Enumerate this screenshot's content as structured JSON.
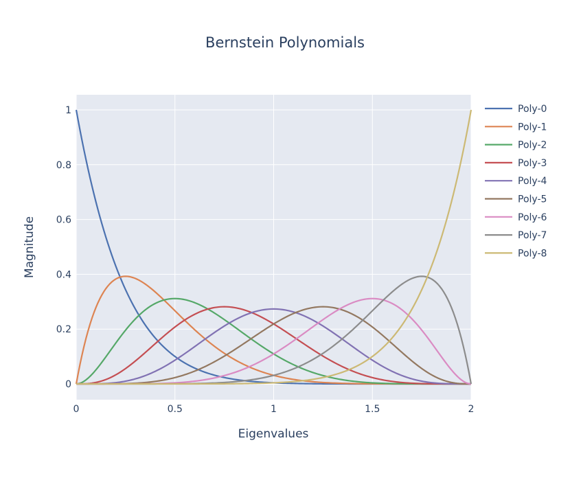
{
  "chart_data": {
    "type": "line",
    "title": "Bernstein Polynomials",
    "xlabel": "Eigenvalues",
    "ylabel": "Magnitude",
    "xlim": [
      0,
      2
    ],
    "ylim": [
      -0.0236,
      1
    ],
    "grid": true,
    "legend_position": "right",
    "x_ticks": [
      {
        "value": 0,
        "label": "0"
      },
      {
        "value": 0.5,
        "label": "0.5"
      },
      {
        "value": 1,
        "label": "1"
      },
      {
        "value": 1.5,
        "label": "1.5"
      },
      {
        "value": 2,
        "label": "2"
      }
    ],
    "y_ticks": [
      {
        "value": 0,
        "label": "0"
      },
      {
        "value": 0.2,
        "label": "0.2"
      },
      {
        "value": 0.4,
        "label": "0.4"
      },
      {
        "value": 0.6,
        "label": "0.6"
      },
      {
        "value": 0.8,
        "label": "0.8"
      },
      {
        "value": 1,
        "label": "1"
      }
    ],
    "x": [
      0,
      0.1,
      0.2,
      0.3,
      0.4,
      0.5,
      0.6,
      0.7,
      0.8,
      0.9,
      1.0,
      1.1,
      1.2,
      1.3,
      1.4,
      1.5,
      1.6,
      1.7,
      1.8,
      1.9,
      2.0
    ],
    "series": [
      {
        "name": "Poly-0",
        "color": "#4c72b0",
        "values": [
          1.0,
          0.663,
          0.43,
          0.272,
          0.168,
          0.1,
          0.058,
          0.032,
          0.017,
          0.008,
          0.004,
          0.002,
          0.001,
          0.0,
          0.0,
          0.0,
          0.0,
          0.0,
          0.0,
          0.0,
          0.0
        ]
      },
      {
        "name": "Poly-1",
        "color": "#dd8452",
        "values": [
          0.0,
          0.279,
          0.383,
          0.385,
          0.336,
          0.267,
          0.198,
          0.138,
          0.09,
          0.055,
          0.031,
          0.017,
          0.008,
          0.004,
          0.002,
          0.0,
          0.0,
          0.0,
          0.0,
          0.0,
          0.0
        ]
      },
      {
        "name": "Poly-2",
        "color": "#55a868",
        "values": [
          0.0,
          0.051,
          0.149,
          0.238,
          0.294,
          0.311,
          0.296,
          0.259,
          0.209,
          0.157,
          0.109,
          0.071,
          0.042,
          0.023,
          0.011,
          0.004,
          0.002,
          0.0,
          0.0,
          0.0,
          0.0
        ]
      },
      {
        "name": "Poly-3",
        "color": "#c44e52",
        "values": [
          0.0,
          0.005,
          0.033,
          0.084,
          0.147,
          0.208,
          0.254,
          0.279,
          0.279,
          0.257,
          0.219,
          0.173,
          0.124,
          0.081,
          0.047,
          0.023,
          0.009,
          0.003,
          0.0,
          0.0,
          0.0
        ]
      },
      {
        "name": "Poly-4",
        "color": "#8172b3",
        "values": [
          0.0,
          0.0,
          0.005,
          0.019,
          0.046,
          0.087,
          0.136,
          0.188,
          0.232,
          0.263,
          0.273,
          0.263,
          0.232,
          0.188,
          0.136,
          0.087,
          0.046,
          0.019,
          0.005,
          0.0,
          0.0
        ]
      },
      {
        "name": "Poly-5",
        "color": "#937860",
        "values": [
          0.0,
          0.0,
          0.0,
          0.003,
          0.009,
          0.023,
          0.047,
          0.081,
          0.124,
          0.173,
          0.219,
          0.257,
          0.279,
          0.279,
          0.254,
          0.208,
          0.147,
          0.084,
          0.033,
          0.005,
          0.0
        ]
      },
      {
        "name": "Poly-6",
        "color": "#da8bc3",
        "values": [
          0.0,
          0.0,
          0.0,
          0.0,
          0.002,
          0.004,
          0.011,
          0.023,
          0.042,
          0.071,
          0.109,
          0.157,
          0.209,
          0.259,
          0.296,
          0.311,
          0.294,
          0.238,
          0.149,
          0.051,
          0.0
        ]
      },
      {
        "name": "Poly-7",
        "color": "#8c8c8c",
        "values": [
          0.0,
          0.0,
          0.0,
          0.0,
          0.0,
          0.0,
          0.002,
          0.004,
          0.008,
          0.017,
          0.031,
          0.055,
          0.09,
          0.138,
          0.198,
          0.267,
          0.336,
          0.385,
          0.383,
          0.279,
          0.0
        ]
      },
      {
        "name": "Poly-8",
        "color": "#ccb974",
        "values": [
          0.0,
          0.0,
          0.0,
          0.0,
          0.0,
          0.0,
          0.0,
          0.0,
          0.001,
          0.002,
          0.004,
          0.008,
          0.017,
          0.032,
          0.058,
          0.1,
          0.168,
          0.272,
          0.43,
          0.663,
          1.0
        ]
      }
    ]
  }
}
